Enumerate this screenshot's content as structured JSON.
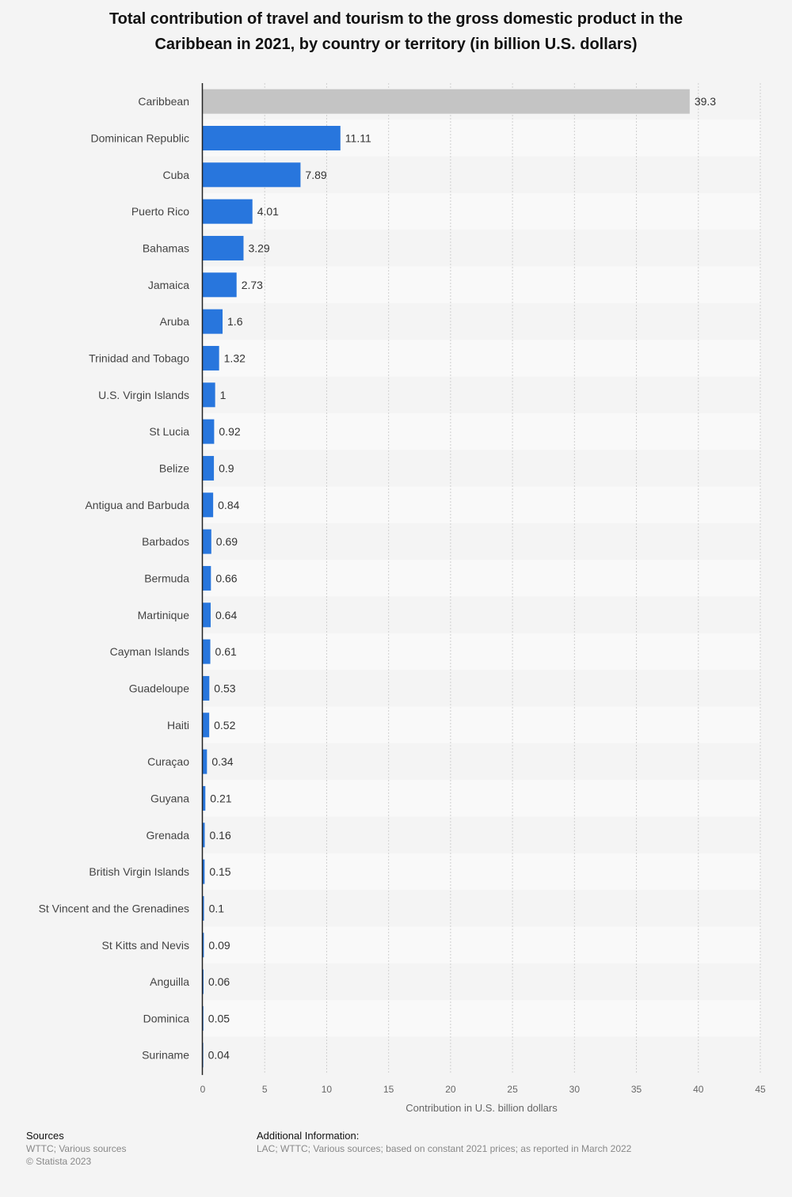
{
  "chart_data": {
    "type": "bar",
    "orientation": "horizontal",
    "title": "Total contribution of travel and tourism to the gross domestic product in the Caribbean in 2021, by country or territory (in billion U.S. dollars)",
    "xlabel": "Contribution in U.S. billion dollars",
    "ylabel": "",
    "xlim": [
      0,
      45
    ],
    "ticks": [
      "0",
      "5",
      "10",
      "15",
      "20",
      "25",
      "30",
      "35",
      "40",
      "45"
    ],
    "grid": true,
    "colors": {
      "bar": "#2876dd",
      "highlight": "#c4c4c4"
    },
    "categories": [
      "Caribbean",
      "Dominican Republic",
      "Cuba",
      "Puerto Rico",
      "Bahamas",
      "Jamaica",
      "Aruba",
      "Trinidad and Tobago",
      "U.S. Virgin Islands",
      "St Lucia",
      "Belize",
      "Antigua and Barbuda",
      "Barbados",
      "Bermuda",
      "Martinique",
      "Cayman Islands",
      "Guadeloupe",
      "Haiti",
      "Curaçao",
      "Guyana",
      "Grenada",
      "British Virgin Islands",
      "St Vincent and the Grenadines",
      "St Kitts and Nevis",
      "Anguilla",
      "Dominica",
      "Suriname"
    ],
    "values": [
      39.3,
      11.11,
      7.89,
      4.01,
      3.29,
      2.73,
      1.6,
      1.32,
      1,
      0.92,
      0.9,
      0.84,
      0.69,
      0.66,
      0.64,
      0.61,
      0.53,
      0.52,
      0.34,
      0.21,
      0.16,
      0.15,
      0.1,
      0.09,
      0.06,
      0.05,
      0.04
    ],
    "value_labels": [
      "39.3",
      "11.11",
      "7.89",
      "4.01",
      "3.29",
      "2.73",
      "1.6",
      "1.32",
      "1",
      "0.92",
      "0.9",
      "0.84",
      "0.69",
      "0.66",
      "0.64",
      "0.61",
      "0.53",
      "0.52",
      "0.34",
      "0.21",
      "0.16",
      "0.15",
      "0.1",
      "0.09",
      "0.06",
      "0.05",
      "0.04"
    ],
    "highlight_category": "Caribbean"
  },
  "footer": {
    "sources_heading": "Sources",
    "sources_text": "WTTC; Various sources",
    "copyright": "© Statista 2023",
    "info_heading": "Additional Information:",
    "info_text": "LAC; WTTC; Various sources; based on constant 2021 prices; as reported in March 2022"
  }
}
